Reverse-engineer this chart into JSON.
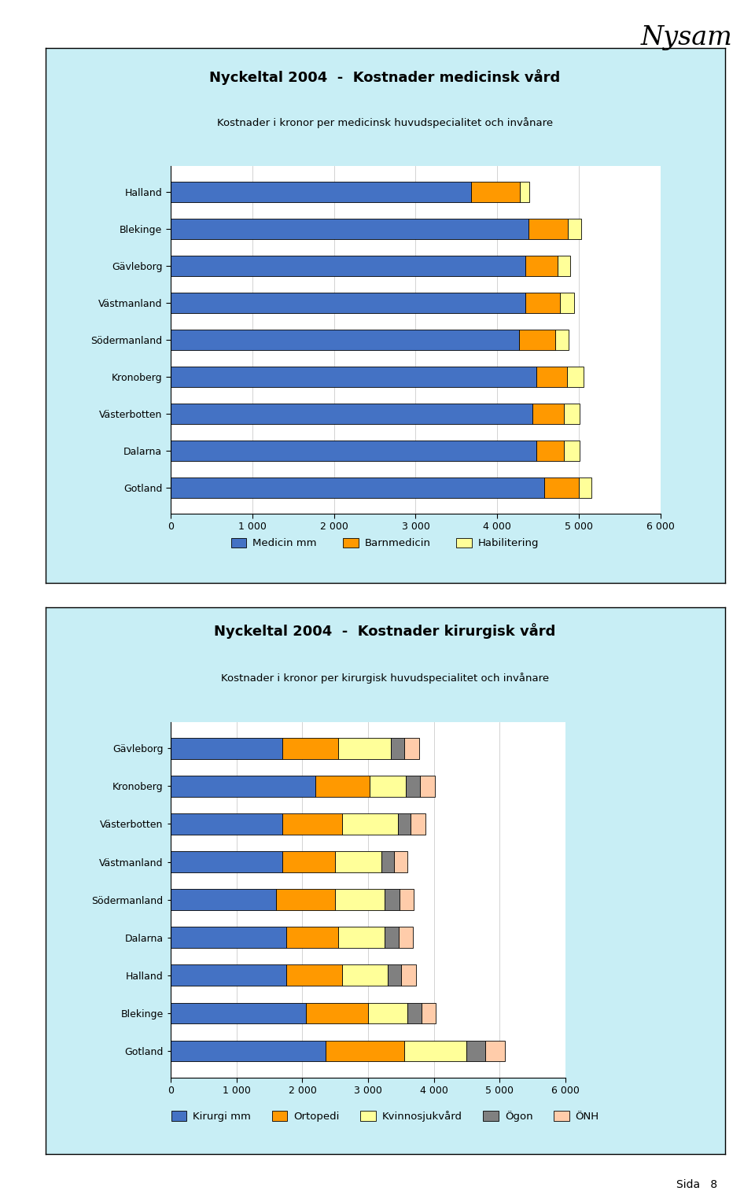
{
  "chart1": {
    "title": "Nyckeltal 2004  -  Kostnader medicinsk vård",
    "subtitle": "Kostnader i kronor per medicinsk huvudspecialitet och invånare",
    "categories": [
      "Halland",
      "Blekinge",
      "Gävleborg",
      "Västmanland",
      "Södermanland",
      "Kronoberg",
      "Västerbotten",
      "Dalarna",
      "Gotland"
    ],
    "medicin_mm": [
      3680,
      4380,
      4350,
      4350,
      4270,
      4480,
      4430,
      4480,
      4580
    ],
    "barnmedicin": [
      600,
      490,
      390,
      420,
      440,
      380,
      390,
      340,
      420
    ],
    "habilitering": [
      110,
      160,
      160,
      175,
      170,
      200,
      195,
      190,
      155
    ],
    "colors": {
      "medicin_mm": "#4472C4",
      "barnmedicin": "#FF9900",
      "habilitering": "#FFFF99"
    },
    "xlim": [
      0,
      6000
    ],
    "xticks": [
      0,
      1000,
      2000,
      3000,
      4000,
      5000,
      6000
    ],
    "xtick_labels": [
      "0",
      "1 000",
      "2 000",
      "3 000",
      "4 000",
      "5 000",
      "6 000"
    ],
    "legend_labels": [
      "Medicin mm",
      "Barnmedicin",
      "Habilitering"
    ]
  },
  "chart2": {
    "title": "Nyckeltal 2004  -  Kostnader kirurgisk vård",
    "subtitle": "Kostnader i kronor per kirurgisk huvudspecialitet och invånare",
    "categories": [
      "Gävleborg",
      "Kronoberg",
      "Västerbotten",
      "Västmanland",
      "Södermanland",
      "Dalarna",
      "Halland",
      "Blekinge",
      "Gotland"
    ],
    "kirurgi_mm": [
      1700,
      2200,
      1700,
      1700,
      1600,
      1750,
      1750,
      2050,
      2350
    ],
    "ortopedi": [
      850,
      820,
      900,
      800,
      900,
      800,
      850,
      950,
      1200
    ],
    "kvinnosjukvard": [
      800,
      550,
      850,
      700,
      750,
      700,
      700,
      600,
      950
    ],
    "ogon": [
      200,
      220,
      200,
      200,
      230,
      220,
      200,
      220,
      280
    ],
    "onh": [
      230,
      230,
      230,
      200,
      220,
      210,
      230,
      210,
      300
    ],
    "colors": {
      "kirurgi_mm": "#4472C4",
      "ortopedi": "#FF9900",
      "kvinnosjukvard": "#FFFF99",
      "ogon": "#808080",
      "onh": "#FFCCAA"
    },
    "xlim": [
      0,
      6000
    ],
    "xticks": [
      0,
      1000,
      2000,
      3000,
      4000,
      5000,
      6000
    ],
    "xtick_labels": [
      "0",
      "1 000",
      "2 000",
      "3 000",
      "4 000",
      "5 000",
      "6 000"
    ],
    "legend_labels": [
      "Kirurgi mm",
      "Ortopedi",
      "Kvinnosjukvård",
      "Ögon",
      "ÖNH"
    ]
  },
  "panel_bg": "#C8EEF5",
  "chart_bg": "#FFFFFF",
  "page_bg": "#FFFFFF",
  "border_color": "#000000",
  "sida_text": "Sida   8"
}
